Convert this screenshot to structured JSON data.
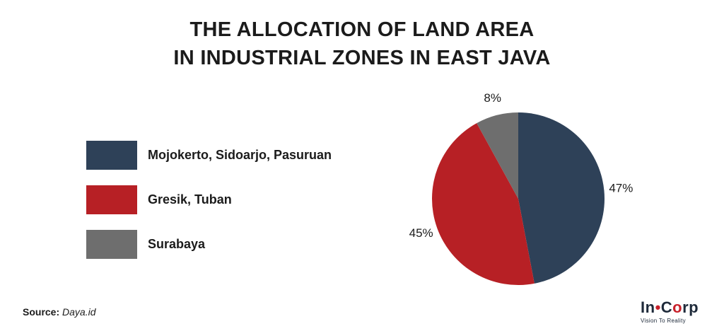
{
  "chart_data": {
    "type": "pie",
    "title_lines": [
      "THE ALLOCATION OF LAND AREA",
      "IN INDUSTRIAL ZONES IN EAST JAVA"
    ],
    "categories": [
      "Mojokerto, Sidoarjo, Pasuruan",
      "Gresik, Tuban",
      "Surabaya"
    ],
    "values": [
      47,
      45,
      8
    ],
    "value_labels": [
      "47%",
      "45%",
      "8%"
    ],
    "colors": [
      "#2e4158",
      "#b72025",
      "#6e6e6e"
    ],
    "legend_position": "left"
  },
  "source": {
    "label": "Source:",
    "value": "Daya.id"
  },
  "logo": {
    "part1": "In",
    "dot": "•",
    "part2": "C",
    "o": "o",
    "part3": "rp",
    "tagline": "Vision To Reality"
  }
}
